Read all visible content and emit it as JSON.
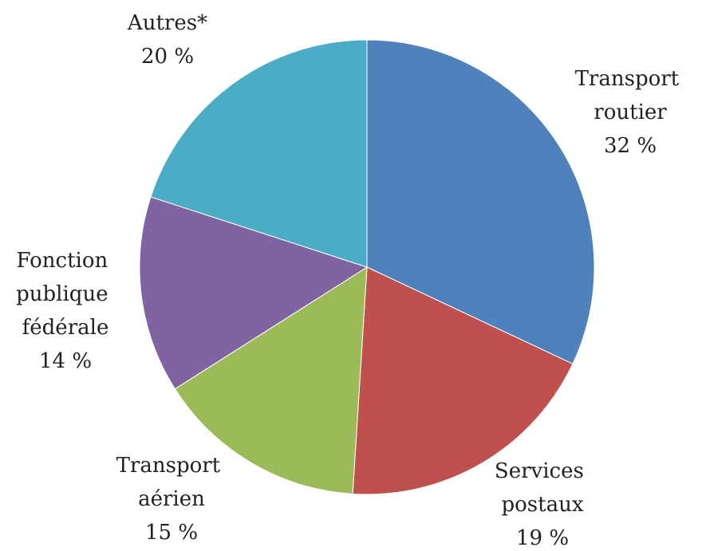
{
  "chart_data": {
    "type": "pie",
    "categories": [
      "Transport routier",
      "Services postaux",
      "Transport aérien",
      "Fonction publique fédérale",
      "Autres*"
    ],
    "values": [
      32,
      19,
      15,
      14,
      20
    ],
    "value_labels": [
      "32 %",
      "19 %",
      "15 %",
      "14 %",
      "20 %"
    ],
    "colors": [
      "#4f81bd",
      "#c0504d",
      "#9bbb59",
      "#8064a2",
      "#4bacc6"
    ]
  }
}
